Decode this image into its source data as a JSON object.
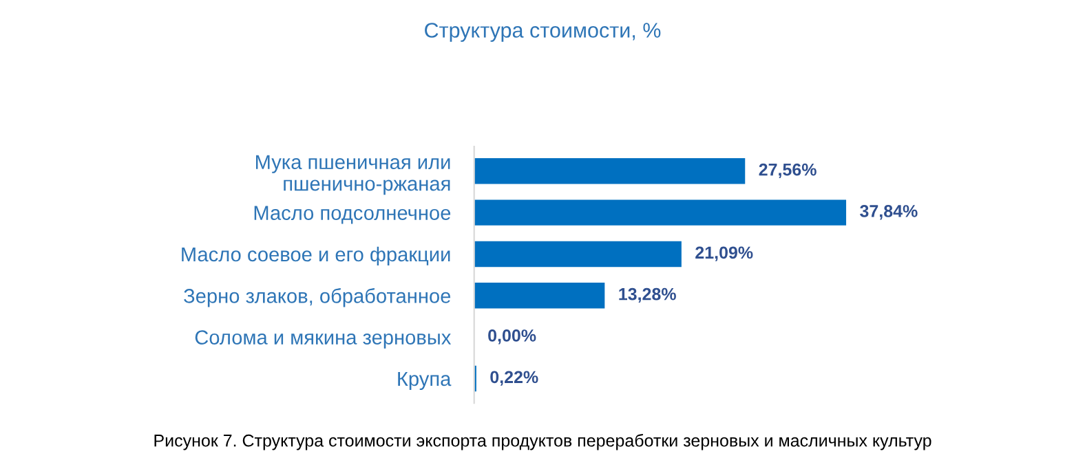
{
  "chart_data": {
    "type": "bar",
    "orientation": "horizontal",
    "title": "Структура стоимости, %",
    "categories": [
      "Мука пшеничная или\nпшенично-ржаная",
      "Масло подсолнечное",
      "Масло соевое и его фракции",
      "Зерно злаков, обработанное",
      "Солома и мякина зерновых",
      "Крупа"
    ],
    "values": [
      27.56,
      37.84,
      21.09,
      13.28,
      0.0,
      0.22
    ],
    "value_labels": [
      "27,56%",
      "37,84%",
      "21,09%",
      "13,28%",
      "0,00%",
      "0,22%"
    ],
    "color": "#0070c0",
    "grid": false,
    "legend": false,
    "tick_labels": "y",
    "annotations": [
      "Рисунок 7. Структура стоимости экспорта продуктов переработки зерновых и масличных культур"
    ]
  }
}
